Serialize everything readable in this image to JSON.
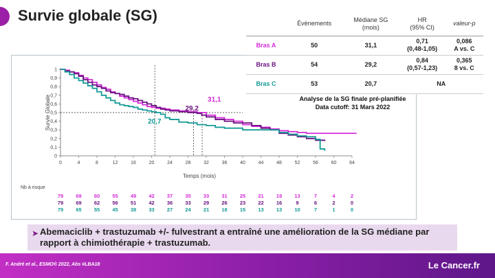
{
  "title": "Survie globale (SG)",
  "table": {
    "headers": [
      "",
      "Évènements",
      "Médiane SG\n(mois)",
      "HR\n(95% CI)",
      "valeur-p"
    ],
    "rows": [
      {
        "arm": "Bras A",
        "color": "#d42bd8",
        "events": "50",
        "median": "31,1",
        "hr": "0,71\n(0,48-1,05)",
        "p": "0,086\nA vs. C"
      },
      {
        "arm": "Bras B",
        "color": "#6a1280",
        "events": "54",
        "median": "29,2",
        "hr": "0,84\n(0,57-1,23)",
        "p": "0,365\n8 vs. C"
      },
      {
        "arm": "Bras C",
        "color": "#149a96",
        "events": "53",
        "median": "20,7",
        "hr_p_merged": "NA"
      }
    ]
  },
  "analysis": {
    "line1": "Analyse de la SG finale pré-planifiée",
    "line2": "Data cutoff: 31 Mars 2022"
  },
  "chart_data": {
    "type": "line",
    "xlabel": "Temps (mois)",
    "ylabel": "Survie Globale",
    "xlim": [
      0,
      64
    ],
    "ylim": [
      0,
      1
    ],
    "xticks": [
      "0",
      "4",
      "8",
      "12",
      "16",
      "20",
      "24",
      "28",
      "32",
      "36",
      "40",
      "44",
      "48",
      "52",
      "56",
      "60",
      "64"
    ],
    "yticks": [
      "0",
      "0,1",
      "0,2",
      "0,3",
      "0,4",
      "0,5",
      "0,6",
      "0,7",
      "0,8",
      "0,9",
      "1"
    ],
    "medians": [
      {
        "label": "31,1",
        "x": 31.1,
        "color": "#d42bd8"
      },
      {
        "label": "29,2",
        "x": 29.2,
        "color": "#6a1280"
      },
      {
        "label": "20,7",
        "x": 20.7,
        "color": "#149a96"
      }
    ],
    "reference_y": 0.5,
    "series": [
      {
        "color": "#d42bd8",
        "x": [
          0,
          1,
          2,
          3,
          4,
          5,
          6,
          7,
          8,
          9,
          10,
          11,
          12,
          13,
          14,
          15,
          16,
          17,
          18,
          19,
          20,
          21,
          22,
          23,
          24,
          26,
          28,
          29,
          30,
          31,
          32,
          34,
          36,
          38,
          40,
          42,
          44,
          46,
          48,
          50,
          52,
          54,
          56,
          58,
          60,
          62,
          65
        ],
        "y": [
          1,
          0.99,
          0.97,
          0.96,
          0.93,
          0.9,
          0.88,
          0.85,
          0.82,
          0.79,
          0.77,
          0.74,
          0.72,
          0.69,
          0.67,
          0.65,
          0.63,
          0.61,
          0.59,
          0.57,
          0.56,
          0.55,
          0.55,
          0.54,
          0.53,
          0.52,
          0.51,
          0.51,
          0.5,
          0.5,
          0.47,
          0.44,
          0.42,
          0.4,
          0.36,
          0.34,
          0.33,
          0.31,
          0.29,
          0.28,
          0.27,
          0.26,
          0.26,
          0.26,
          0.26,
          0.26,
          0.26
        ]
      },
      {
        "color": "#6a1280",
        "x": [
          0,
          1,
          2,
          3,
          4,
          5,
          6,
          7,
          8,
          9,
          10,
          11,
          12,
          13,
          14,
          15,
          16,
          17,
          18,
          19,
          20,
          21,
          22,
          23,
          24,
          26,
          28,
          29,
          30,
          31,
          32,
          34,
          36,
          38,
          40,
          42,
          44,
          46,
          48,
          50,
          52,
          54,
          56,
          58
        ],
        "y": [
          1,
          0.98,
          0.97,
          0.95,
          0.92,
          0.88,
          0.85,
          0.82,
          0.8,
          0.78,
          0.75,
          0.73,
          0.72,
          0.71,
          0.69,
          0.67,
          0.66,
          0.64,
          0.62,
          0.6,
          0.58,
          0.56,
          0.54,
          0.53,
          0.52,
          0.51,
          0.5,
          0.5,
          0.49,
          0.47,
          0.45,
          0.42,
          0.4,
          0.38,
          0.38,
          0.35,
          0.32,
          0.3,
          0.26,
          0.24,
          0.22,
          0.2,
          0.18,
          0.17
        ]
      },
      {
        "color": "#149a96",
        "x": [
          0,
          1,
          2,
          3,
          4,
          5,
          6,
          7,
          8,
          9,
          10,
          11,
          12,
          13,
          14,
          15,
          16,
          17,
          18,
          19,
          20,
          21,
          22,
          23,
          24,
          26,
          28,
          30,
          32,
          34,
          36,
          38,
          40,
          42,
          44,
          46,
          48,
          50,
          52,
          54,
          56,
          57,
          58
        ],
        "y": [
          1,
          0.97,
          0.94,
          0.9,
          0.87,
          0.84,
          0.81,
          0.78,
          0.74,
          0.7,
          0.67,
          0.64,
          0.61,
          0.59,
          0.58,
          0.57,
          0.56,
          0.54,
          0.53,
          0.52,
          0.51,
          0.5,
          0.48,
          0.44,
          0.42,
          0.39,
          0.38,
          0.36,
          0.35,
          0.33,
          0.32,
          0.32,
          0.3,
          0.3,
          0.3,
          0.3,
          0.27,
          0.25,
          0.23,
          0.22,
          0.19,
          0.08,
          0.06
        ]
      }
    ],
    "at_risk": {
      "label": "Nb à risque",
      "rows": [
        {
          "color": "#d42bd8",
          "values": [
            "79",
            "69",
            "60",
            "55",
            "49",
            "42",
            "37",
            "35",
            "33",
            "31",
            "25",
            "21",
            "19",
            "13",
            "7",
            "4",
            "2"
          ]
        },
        {
          "color": "#6a1280",
          "values": [
            "79",
            "69",
            "62",
            "56",
            "51",
            "42",
            "36",
            "33",
            "29",
            "26",
            "23",
            "22",
            "16",
            "9",
            "6",
            "2",
            "0"
          ]
        },
        {
          "color": "#149a96",
          "values": [
            "79",
            "65",
            "55",
            "45",
            "38",
            "33",
            "27",
            "24",
            "21",
            "18",
            "15",
            "13",
            "13",
            "10",
            "7",
            "1",
            "0"
          ]
        }
      ]
    }
  },
  "conclusion": "Abemaciclib + trastuzumab +/- fulvestrant a entraîné une amélioration de la SG médiane par rapport à  chimiothérapie + trastuzumab.",
  "footer": {
    "reference": "F. André et al.,  ESMO® 2022, Abs #LBA18",
    "logo": "Le Cancer.fr"
  }
}
